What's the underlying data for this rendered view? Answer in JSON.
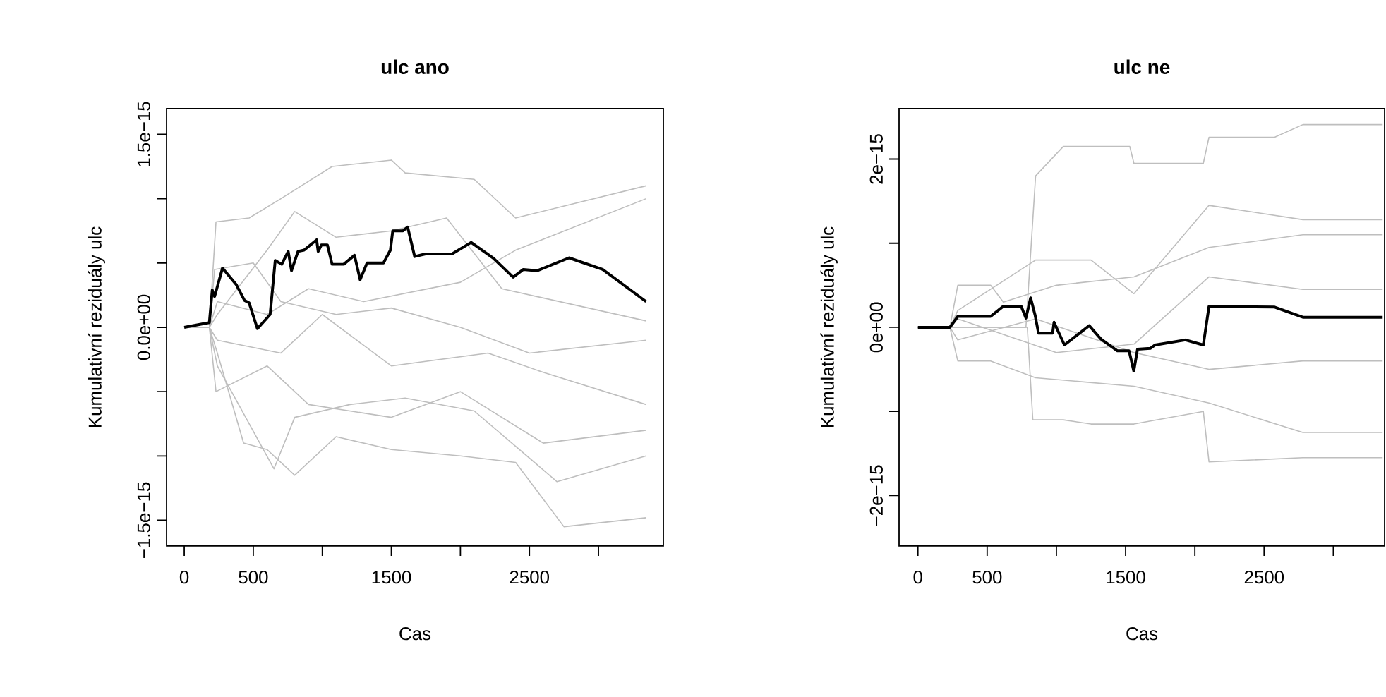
{
  "chart_data": [
    {
      "type": "line",
      "title": "ulc ano",
      "xlabel": "Cas",
      "ylabel": "Kumulativní reziduály ulc",
      "xlim": [
        -128,
        3470
      ],
      "ylim": [
        -1.7e-15,
        1.7e-15
      ],
      "xticks": [
        0,
        500,
        {
          "value": 1000,
          "label": null
        },
        1500,
        {
          "value": 2000,
          "label": null
        },
        2500,
        {
          "value": 3000,
          "label": null
        }
      ],
      "yticks": [
        {
          "value": -1.5e-15,
          "label": "−1.5e−15"
        },
        {
          "value": -1e-15,
          "label": null
        },
        {
          "value": -5e-16,
          "label": null
        },
        {
          "value": 0,
          "label": "0.0e+00"
        },
        {
          "value": 5e-16,
          "label": null
        },
        {
          "value": 1e-15,
          "label": null
        },
        {
          "value": 1.5e-15,
          "label": "1.5e−15"
        }
      ],
      "series": [
        {
          "color": "#bebebe",
          "x": [
            0,
            182,
            230,
            470,
            700,
            1071,
            1500,
            1600,
            2100,
            2400,
            3345
          ],
          "values": [
            0,
            0,
            8.2e-16,
            8.5e-16,
            1e-15,
            1.25e-15,
            1.3e-15,
            1.2e-15,
            1.15e-15,
            8.5e-16,
            1.1e-15
          ]
        },
        {
          "color": "#bebebe",
          "x": [
            0,
            182,
            240,
            430,
            600,
            800,
            1100,
            1500,
            2000,
            2400,
            2750,
            3345
          ],
          "values": [
            0,
            0,
            -2e-16,
            -9e-16,
            -9.5e-16,
            -1.15e-15,
            -8.5e-16,
            -9.5e-16,
            -1e-15,
            -1.05e-15,
            -1.55e-15,
            -1.48e-15
          ]
        },
        {
          "color": "#bebebe",
          "x": [
            0,
            182,
            220,
            500,
            700,
            1100,
            1500,
            2000,
            2500,
            3345
          ],
          "values": [
            0,
            0,
            4.5e-16,
            5e-16,
            2e-16,
            1e-16,
            1.5e-16,
            0,
            -2e-16,
            -1e-16
          ]
        },
        {
          "color": "#bebebe",
          "x": [
            0,
            182,
            230,
            600,
            900,
            1500,
            2000,
            2600,
            3345
          ],
          "values": [
            0,
            0,
            -5e-16,
            -3e-16,
            -6e-16,
            -7e-16,
            -5e-16,
            -9e-16,
            -8e-16
          ]
        },
        {
          "color": "#bebebe",
          "x": [
            0,
            182,
            240,
            600,
            900,
            1300,
            2000,
            2400,
            3345
          ],
          "values": [
            0,
            0,
            2e-16,
            1e-16,
            3e-16,
            2e-16,
            3.5e-16,
            6e-16,
            1e-15
          ]
        },
        {
          "color": "#bebebe",
          "x": [
            0,
            182,
            240,
            700,
            1000,
            1500,
            2200,
            2600,
            3345
          ],
          "values": [
            0,
            0,
            -1e-16,
            -2e-16,
            1e-16,
            -3e-16,
            -2e-16,
            -3.5e-16,
            -6e-16
          ]
        },
        {
          "color": "#bebebe",
          "x": [
            0,
            182,
            240,
            650,
            800,
            1200,
            1600,
            2100,
            2700,
            3345
          ],
          "values": [
            0,
            0,
            -3e-16,
            -1.1e-15,
            -7e-16,
            -6e-16,
            -5.5e-16,
            -6.5e-16,
            -1.2e-15,
            -1e-15
          ]
        },
        {
          "color": "#bebebe",
          "x": [
            0,
            182,
            240,
            600,
            800,
            1100,
            1500,
            1900,
            2300,
            3345
          ],
          "values": [
            0,
            0,
            1e-16,
            6e-16,
            9e-16,
            7e-16,
            7.5e-16,
            8.5e-16,
            3e-16,
            5e-17
          ]
        },
        {
          "color": "#000000",
          "x": [
            0,
            182,
            203,
            220,
            277,
            378,
            436,
            470,
            530,
            622,
            659,
            706,
            753,
            777,
            824,
            868,
            959,
            970,
            993,
            1037,
            1071,
            1155,
            1233,
            1274,
            1324,
            1443,
            1493,
            1510,
            1584,
            1618,
            1669,
            1747,
            1939,
            2078,
            2236,
            2382,
            2456,
            2557,
            2787,
            3030,
            3345
          ],
          "values": [
            0,
            3.7e-17,
            2.9e-16,
            2.4e-16,
            4.6e-16,
            3.3e-16,
            2.1e-16,
            1.9e-16,
            -1e-17,
            1e-16,
            5.2e-16,
            4.9e-16,
            5.9e-16,
            4.4e-16,
            5.9e-16,
            6e-16,
            6.8e-16,
            5.9e-16,
            6.4e-16,
            6.4e-16,
            4.9e-16,
            4.9e-16,
            5.6e-16,
            3.7e-16,
            5e-16,
            5e-16,
            6e-16,
            7.5e-16,
            7.5e-16,
            7.8e-16,
            5.5e-16,
            5.7e-16,
            5.7e-16,
            6.6e-16,
            5.4e-16,
            3.9e-16,
            4.5e-16,
            4.4e-16,
            5.4e-16,
            4.5e-16,
            2e-16
          ]
        }
      ]
    },
    {
      "type": "line",
      "title": "ulc ne",
      "xlabel": "Cas",
      "ylabel": "Kumulativní reziduály ulc",
      "xlim": [
        -136,
        3370
      ],
      "ylim": [
        -2.6e-15,
        2.6e-15
      ],
      "xticks": [
        0,
        500,
        {
          "value": 1000,
          "label": null
        },
        1500,
        {
          "value": 2000,
          "label": null
        },
        2500,
        {
          "value": 3000,
          "label": null
        }
      ],
      "yticks": [
        {
          "value": -2e-15,
          "label": "−2e−15"
        },
        {
          "value": -1e-15,
          "label": null
        },
        {
          "value": 0,
          "label": "0e+00"
        },
        {
          "value": 1e-15,
          "label": null
        },
        {
          "value": 2e-15,
          "label": "2e−15"
        }
      ],
      "series": [
        {
          "color": "#bebebe",
          "x": [
            0,
            231,
            780,
            850,
            1050,
            1530,
            1560,
            2061,
            2102,
            2576,
            2780,
            3356
          ],
          "values": [
            0,
            0,
            0,
            1.8e-15,
            2.15e-15,
            2.15e-15,
            1.95e-15,
            1.95e-15,
            2.26e-15,
            2.26e-15,
            2.41e-15,
            2.41e-15
          ]
        },
        {
          "color": "#bebebe",
          "x": [
            0,
            231,
            790,
            830,
            1050,
            1250,
            1560,
            2061,
            2102,
            2780,
            3356
          ],
          "values": [
            0,
            0,
            0,
            -1.1e-15,
            -1.1e-15,
            -1.15e-15,
            -1.15e-15,
            -1e-15,
            -1.6e-15,
            -1.55e-15,
            -1.55e-15
          ]
        },
        {
          "color": "#bebebe",
          "x": [
            0,
            231,
            288,
            525,
            617,
            1000,
            1560,
            2102,
            2780,
            3356
          ],
          "values": [
            0,
            0,
            5e-16,
            5e-16,
            3e-16,
            5e-16,
            6e-16,
            9.5e-16,
            1.1e-15,
            1.1e-15
          ]
        },
        {
          "color": "#bebebe",
          "x": [
            0,
            231,
            288,
            525,
            850,
            1560,
            2102,
            2780,
            3356
          ],
          "values": [
            0,
            0,
            -4e-16,
            -4e-16,
            -6e-16,
            -7e-16,
            -9e-16,
            -1.25e-15,
            -1.25e-15
          ]
        },
        {
          "color": "#bebebe",
          "x": [
            0,
            231,
            288,
            850,
            1250,
            1560,
            2102,
            2780,
            3356
          ],
          "values": [
            0,
            0,
            2e-16,
            8e-16,
            8e-16,
            4e-16,
            1.45e-15,
            1.28e-15,
            1.28e-15
          ]
        },
        {
          "color": "#bebebe",
          "x": [
            0,
            231,
            288,
            850,
            1560,
            2102,
            2780,
            3356
          ],
          "values": [
            0,
            0,
            -1.5e-16,
            1e-16,
            -3e-16,
            -5e-16,
            -4e-16,
            -4e-16
          ]
        },
        {
          "color": "#bebebe",
          "x": [
            0,
            231,
            288,
            1000,
            1560,
            2102,
            2780,
            3356
          ],
          "values": [
            0,
            0,
            1e-16,
            -3e-16,
            -2e-16,
            6e-16,
            4.5e-16,
            4.5e-16
          ]
        },
        {
          "color": "#000000",
          "x": [
            0,
            231,
            288,
            525,
            617,
            746,
            780,
            814,
            847,
            871,
            973,
            983,
            1058,
            1237,
            1322,
            1441,
            1525,
            1559,
            1586,
            1678,
            1712,
            1932,
            2061,
            2102,
            2576,
            2780,
            3356
          ],
          "values": [
            0,
            0,
            1.3e-16,
            1.3e-16,
            2.5e-16,
            2.5e-16,
            1.1e-16,
            3.5e-16,
            1.4e-16,
            -7e-17,
            -7e-17,
            6e-17,
            -2.1e-16,
            2e-17,
            -1.4e-16,
            -2.8e-16,
            -2.8e-16,
            -5.2e-16,
            -2.6e-16,
            -2.5e-16,
            -2.1e-16,
            -1.5e-16,
            -2.1e-16,
            2.5e-16,
            2.4e-16,
            1.2e-16,
            1.2e-16
          ]
        }
      ]
    }
  ]
}
